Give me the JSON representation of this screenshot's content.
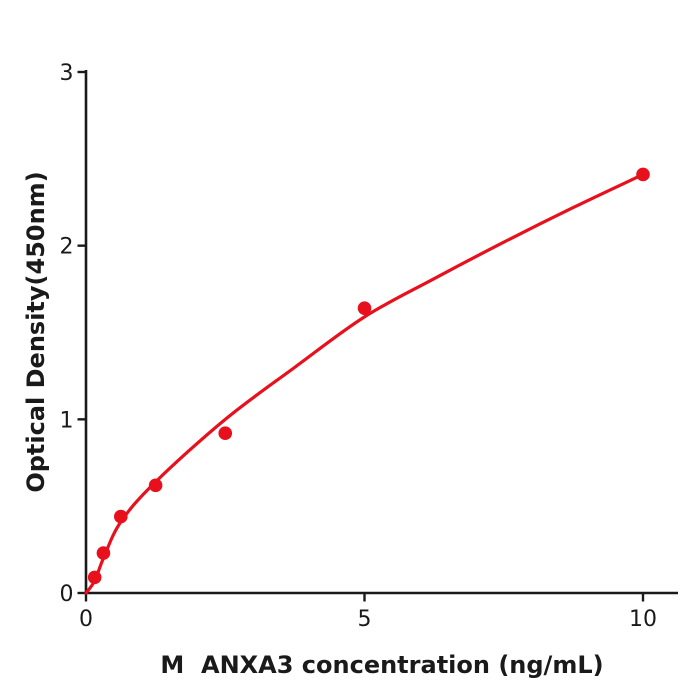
{
  "chart_data": {
    "type": "scatter",
    "title": "",
    "xlabel": "M  ANXA3 concentration (ng/mL)",
    "ylabel": "Optical Density(450nm)",
    "x": [
      0.156,
      0.313,
      0.625,
      1.25,
      2.5,
      5,
      10
    ],
    "y": [
      0.09,
      0.23,
      0.44,
      0.62,
      0.92,
      1.64,
      2.41
    ],
    "fit_curve": [
      [
        0,
        0
      ],
      [
        0.156,
        0.07
      ],
      [
        0.313,
        0.2
      ],
      [
        0.625,
        0.41
      ],
      [
        1.25,
        0.64
      ],
      [
        2.5,
        1.0
      ],
      [
        3.75,
        1.3
      ],
      [
        5,
        1.59
      ],
      [
        6.25,
        1.81
      ],
      [
        7.5,
        2.02
      ],
      [
        8.75,
        2.22
      ],
      [
        10,
        2.41
      ]
    ],
    "x_ticks": [
      0,
      5,
      10
    ],
    "y_ticks": [
      0,
      1,
      2,
      3
    ],
    "xlim": [
      0,
      10.6
    ],
    "ylim": [
      0,
      3
    ],
    "grid": false,
    "legend": "none",
    "point_color": "#e8101c",
    "line_color": "#e8101c",
    "axis_color": "#1a1a1a",
    "background": "#ffffff"
  }
}
